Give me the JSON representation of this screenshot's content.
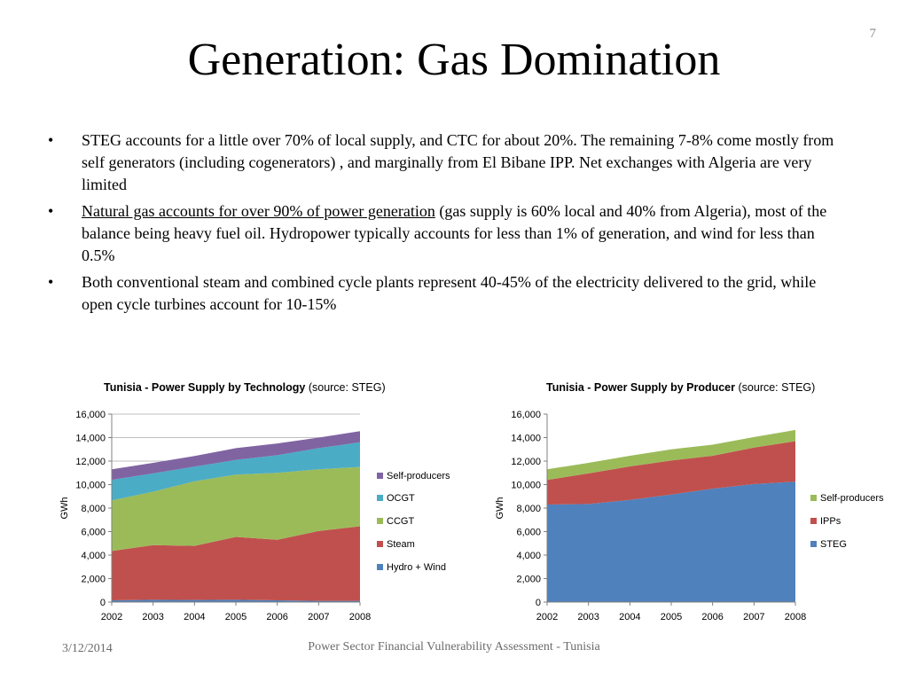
{
  "slide": {
    "number": "7",
    "title": "Generation: Gas Domination",
    "bullets": [
      {
        "marker": "•",
        "lead": "",
        "text": "STEG accounts for a little over 70% of local supply, and CTC for about 20%. The remaining 7-8% come mostly from self generators (including cogenerators) , and marginally from El Bibane IPP. Net exchanges with Algeria are very limited"
      },
      {
        "marker": "•",
        "lead": "Natural gas accounts for over 90% of power generation",
        "text": " (gas supply is 60% local and 40% from Algeria), most of the balance being heavy fuel oil. Hydropower typically accounts for less than 1% of generation, and wind for less than 0.5%"
      },
      {
        "marker": "•",
        "lead": "",
        "text": "Both conventional steam and combined cycle plants represent 40-45% of the electricity delivered to the grid, while open cycle turbines account for 10-15%"
      }
    ],
    "footer": {
      "date": "3/12/2014",
      "center": "Power Sector Financial Vulnerability Assessment - Tunisia"
    }
  },
  "chart_data": [
    {
      "type": "area",
      "stacked": true,
      "title": "Tunisia - Power Supply by Technology",
      "title_note": "(source: STEG)",
      "xlabel": "",
      "ylabel": "GWh",
      "ylim": [
        0,
        16000
      ],
      "yticks": [
        "0",
        "2,000",
        "4,000",
        "6,000",
        "8,000",
        "10,000",
        "12,000",
        "14,000",
        "16,000"
      ],
      "x": [
        "2002",
        "2003",
        "2004",
        "2005",
        "2006",
        "2007",
        "2008"
      ],
      "grid": true,
      "legend": "right",
      "series": [
        {
          "name": "Hydro + Wind",
          "color": "#4F81BD",
          "values": [
            150,
            200,
            180,
            200,
            150,
            100,
            100
          ]
        },
        {
          "name": "Steam",
          "color": "#C0504D",
          "values": [
            4200,
            4650,
            4600,
            5350,
            5150,
            5950,
            6350
          ]
        },
        {
          "name": "CCGT",
          "color": "#9BBB59",
          "values": [
            4300,
            4550,
            5500,
            5300,
            5700,
            5250,
            5050
          ]
        },
        {
          "name": "OCGT",
          "color": "#4BACC6",
          "values": [
            1750,
            1550,
            1250,
            1250,
            1500,
            1800,
            2100
          ]
        },
        {
          "name": "Self-producers",
          "color": "#8064A2",
          "values": [
            900,
            900,
            900,
            1000,
            1000,
            900,
            950
          ]
        }
      ]
    },
    {
      "type": "area",
      "stacked": true,
      "title": "Tunisia - Power Supply by Producer",
      "title_note": "(source: STEG)",
      "xlabel": "",
      "ylabel": "GWh",
      "ylim": [
        0,
        16000
      ],
      "yticks": [
        "0",
        "2,000",
        "4,000",
        "6,000",
        "8,000",
        "10,000",
        "12,000",
        "14,000",
        "16,000"
      ],
      "x": [
        "2002",
        "2003",
        "2004",
        "2005",
        "2006",
        "2007",
        "2008"
      ],
      "grid": false,
      "legend": "right",
      "series": [
        {
          "name": "STEG",
          "color": "#4F81BD",
          "values": [
            8300,
            8350,
            8700,
            9150,
            9650,
            10050,
            10250
          ]
        },
        {
          "name": "IPPs",
          "color": "#C0504D",
          "values": [
            2100,
            2600,
            2850,
            2900,
            2800,
            3100,
            3450
          ]
        },
        {
          "name": "Self-producers",
          "color": "#9BBB59",
          "values": [
            900,
            900,
            900,
            950,
            950,
            900,
            950
          ]
        }
      ]
    }
  ]
}
